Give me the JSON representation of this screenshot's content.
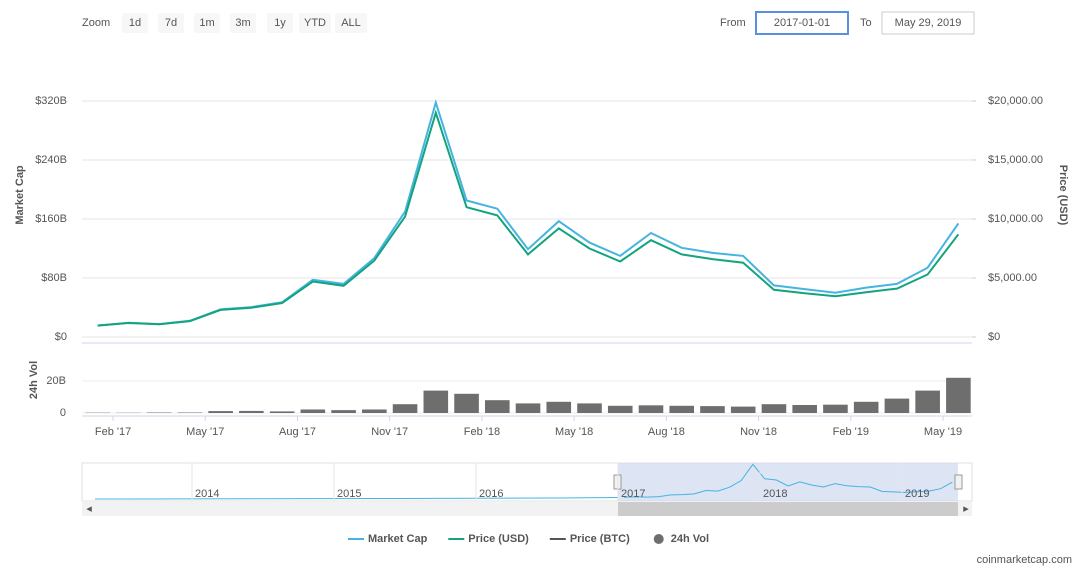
{
  "toolbar": {
    "zoom_label": "Zoom",
    "buttons": [
      "1d",
      "7d",
      "1m",
      "3m",
      "1y",
      "YTD",
      "ALL"
    ],
    "from_label": "From",
    "from_value": "2017-01-01",
    "to_label": "To",
    "to_value": "May 29, 2019"
  },
  "chart_data": [
    {
      "type": "line",
      "ylabel": "Market Cap",
      "y2label": "Price (USD)",
      "x": [
        "2017-01",
        "2017-02",
        "2017-03",
        "2017-04",
        "2017-05",
        "2017-06",
        "2017-07",
        "2017-08",
        "2017-09",
        "2017-10",
        "2017-11",
        "2017-12",
        "2018-01",
        "2018-02",
        "2018-03",
        "2018-04",
        "2018-05",
        "2018-06",
        "2018-07",
        "2018-08",
        "2018-09",
        "2018-10",
        "2018-11",
        "2018-12",
        "2019-01",
        "2019-02",
        "2019-03",
        "2019-04",
        "2019-05"
      ],
      "xticks": [
        {
          "value": "2017-02",
          "label": "Feb '17"
        },
        {
          "value": "2017-05",
          "label": "May '17"
        },
        {
          "value": "2017-08",
          "label": "Aug '17"
        },
        {
          "value": "2017-11",
          "label": "Nov '17"
        },
        {
          "value": "2018-02",
          "label": "Feb '18"
        },
        {
          "value": "2018-05",
          "label": "May '18"
        },
        {
          "value": "2018-08",
          "label": "Aug '18"
        },
        {
          "value": "2018-11",
          "label": "Nov '18"
        },
        {
          "value": "2019-02",
          "label": "Feb '19"
        },
        {
          "value": "2019-05",
          "label": "May '19"
        }
      ],
      "ylim": [
        0,
        330000000000
      ],
      "yticks": [
        {
          "value": 0,
          "label": "$0"
        },
        {
          "value": 80000000000,
          "label": "$80B"
        },
        {
          "value": 160000000000,
          "label": "$160B"
        },
        {
          "value": 240000000000,
          "label": "$240B"
        },
        {
          "value": 320000000000,
          "label": "$320B"
        }
      ],
      "y2lim": [
        0,
        20625
      ],
      "y2ticks": [
        {
          "value": 0,
          "label": "$0"
        },
        {
          "value": 5000,
          "label": "$5,000.00"
        },
        {
          "value": 10000,
          "label": "$10,000.00"
        },
        {
          "value": 15000,
          "label": "$15,000.00"
        },
        {
          "value": 20000,
          "label": "$20,000.00"
        }
      ],
      "grid": true,
      "series": [
        {
          "name": "Market Cap",
          "color": "#45b4e0",
          "values": [
            15600000000,
            19200000000,
            17500000000,
            22000000000,
            37500000000,
            40600000000,
            47000000000,
            77500000000,
            72000000000,
            107000000000,
            170000000000,
            318000000000,
            185000000000,
            174000000000,
            119000000000,
            157000000000,
            128000000000,
            110000000000,
            141000000000,
            121000000000,
            114000000000,
            110000000000,
            70000000000,
            65000000000,
            60000000000,
            67000000000,
            72000000000,
            94000000000,
            154000000000
          ]
        },
        {
          "name": "Price (USD)",
          "color": "#14a37f",
          "axis": "y2",
          "values": [
            970,
            1190,
            1080,
            1350,
            2300,
            2480,
            2870,
            4700,
            4340,
            6470,
            10200,
            19000,
            11000,
            10300,
            7000,
            9200,
            7500,
            6400,
            8200,
            7000,
            6600,
            6300,
            4000,
            3700,
            3450,
            3800,
            4100,
            5300,
            8700
          ]
        },
        {
          "name": "Price (BTC)",
          "color": "#555555",
          "visible": false
        }
      ]
    },
    {
      "type": "bar",
      "ylabel": "24h Vol",
      "ylim": [
        0,
        42000000000
      ],
      "yticks": [
        0,
        {
          "value": 20000000000,
          "label": "20B"
        }
      ],
      "series": [
        {
          "name": "24h Vol",
          "color": "#6e6e6e",
          "values": [
            200000000,
            150000000,
            300000000,
            300000000,
            1200000000,
            1300000000,
            1000000000,
            2200000000,
            1800000000,
            2200000000,
            5500000000,
            14000000000,
            12000000000,
            8000000000,
            6000000000,
            7000000000,
            6000000000,
            4500000000,
            4800000000,
            4500000000,
            4300000000,
            4000000000,
            5500000000,
            5000000000,
            5200000000,
            7000000000,
            9000000000,
            14000000000,
            22000000000
          ]
        }
      ]
    }
  ],
  "navigator": {
    "labels": [
      "2014",
      "2015",
      "2016",
      "2017",
      "2018",
      "2019"
    ]
  },
  "credit": "coinmarketcap.com"
}
